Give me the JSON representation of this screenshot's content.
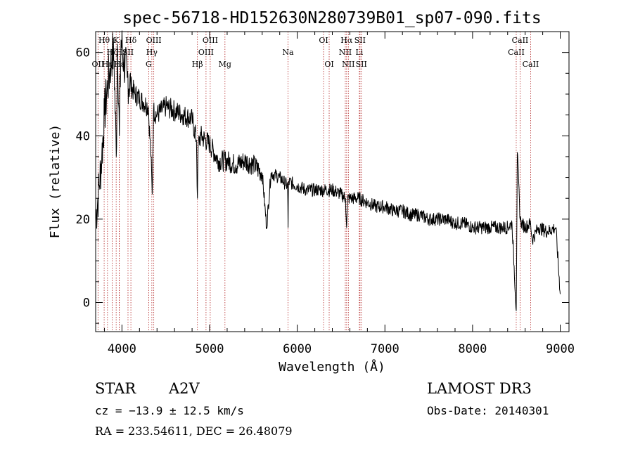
{
  "chart_data": {
    "type": "line",
    "title": "spec-56718-HD152630N280739B01_sp07-090.fits",
    "xlabel": "Wavelength (Å)",
    "ylabel": "Flux (relative)",
    "xlim": [
      3700,
      9100
    ],
    "ylim": [
      -7,
      65
    ],
    "x_ticks": [
      4000,
      5000,
      6000,
      7000,
      8000,
      9000
    ],
    "x_tick_labels": [
      "4000",
      "5000",
      "6000",
      "7000",
      "8000",
      "9000"
    ],
    "y_ticks": [
      0,
      20,
      40,
      60
    ],
    "y_tick_labels": [
      "0",
      "20",
      "40",
      "60"
    ],
    "series": [
      {
        "name": "spectrum",
        "x": [
          3700,
          3740,
          3770,
          3800,
          3835,
          3860,
          3890,
          3910,
          3935,
          3950,
          3970,
          3990,
          4020,
          4060,
          4100,
          4150,
          4200,
          4250,
          4300,
          4330,
          4345,
          4360,
          4400,
          4500,
          4600,
          4700,
          4800,
          4850,
          4861,
          4870,
          4900,
          5000,
          5100,
          5200,
          5300,
          5400,
          5500,
          5600,
          5650,
          5700,
          5800,
          5890,
          5895,
          5900,
          6000,
          6100,
          6200,
          6300,
          6400,
          6500,
          6550,
          6563,
          6575,
          6600,
          6700,
          6800,
          6900,
          7000,
          7100,
          7200,
          7300,
          7400,
          7500,
          7600,
          7700,
          7800,
          7900,
          8000,
          8100,
          8200,
          8300,
          8400,
          8450,
          8498,
          8510,
          8542,
          8560,
          8600,
          8662,
          8680,
          8750,
          8850,
          8950,
          9000
        ],
        "y": [
          20,
          28,
          35,
          45,
          52,
          55,
          60,
          58,
          35,
          62,
          40,
          63,
          58,
          54,
          52,
          50,
          49,
          48,
          47,
          35,
          26,
          46,
          45,
          47,
          46,
          45,
          44,
          39,
          25,
          38,
          40,
          38,
          34,
          34,
          33,
          34,
          33,
          31,
          18,
          31,
          30,
          28,
          18,
          29,
          28,
          27,
          27,
          27,
          27,
          26,
          25,
          18,
          25,
          25,
          25,
          24,
          23,
          23,
          22,
          22,
          21,
          21,
          20,
          20,
          20,
          19,
          19,
          18,
          18,
          18,
          18,
          18,
          19,
          -2,
          36,
          20,
          19,
          18,
          19,
          15,
          18,
          17,
          18,
          2
        ]
      }
    ],
    "line_annotations": [
      {
        "label": "OII",
        "x": 3727,
        "row": 3
      },
      {
        "label": "Hθ",
        "x": 3797,
        "row": 1
      },
      {
        "label": "Hη",
        "x": 3835,
        "row": 3
      },
      {
        "label": "Hζ",
        "x": 3889,
        "row": 2
      },
      {
        "label": "K",
        "x": 3934,
        "row": 1
      },
      {
        "label": "H",
        "x": 3968,
        "row": 2
      },
      {
        "label": "Hε",
        "x": 3970,
        "row": 3
      },
      {
        "label": "SII",
        "x": 4069,
        "row": 2
      },
      {
        "label": "Hδ",
        "x": 4102,
        "row": 1
      },
      {
        "label": "G",
        "x": 4305,
        "row": 3
      },
      {
        "label": "Hγ",
        "x": 4341,
        "row": 2
      },
      {
        "label": "OIII",
        "x": 4363,
        "row": 1
      },
      {
        "label": "Hβ",
        "x": 4861,
        "row": 3
      },
      {
        "label": "OIII",
        "x": 4959,
        "row": 2
      },
      {
        "label": "OIII",
        "x": 5007,
        "row": 1
      },
      {
        "label": "Mg",
        "x": 5175,
        "row": 3
      },
      {
        "label": "Na",
        "x": 5894,
        "row": 2
      },
      {
        "label": "OI",
        "x": 6300,
        "row": 1
      },
      {
        "label": "OI",
        "x": 6364,
        "row": 3
      },
      {
        "label": "NII",
        "x": 6548,
        "row": 2
      },
      {
        "label": "Hα",
        "x": 6563,
        "row": 1
      },
      {
        "label": "NII",
        "x": 6583,
        "row": 3
      },
      {
        "label": "Li",
        "x": 6708,
        "row": 2
      },
      {
        "label": "SII",
        "x": 6716,
        "row": 1
      },
      {
        "label": "SII",
        "x": 6731,
        "row": 3
      },
      {
        "label": "CaII",
        "x": 8498,
        "row": 2
      },
      {
        "label": "CaII",
        "x": 8542,
        "row": 1
      },
      {
        "label": "CaII",
        "x": 8662,
        "row": 3
      }
    ]
  },
  "info": {
    "class": "STAR",
    "subclass": "A2V",
    "survey": "LAMOST DR3",
    "cz": "cz = −13.9 ± 12.5 km/s",
    "obs_date": "Obs-Date: 20140301",
    "coords": "RA = 233.54611, DEC =  26.48079"
  }
}
